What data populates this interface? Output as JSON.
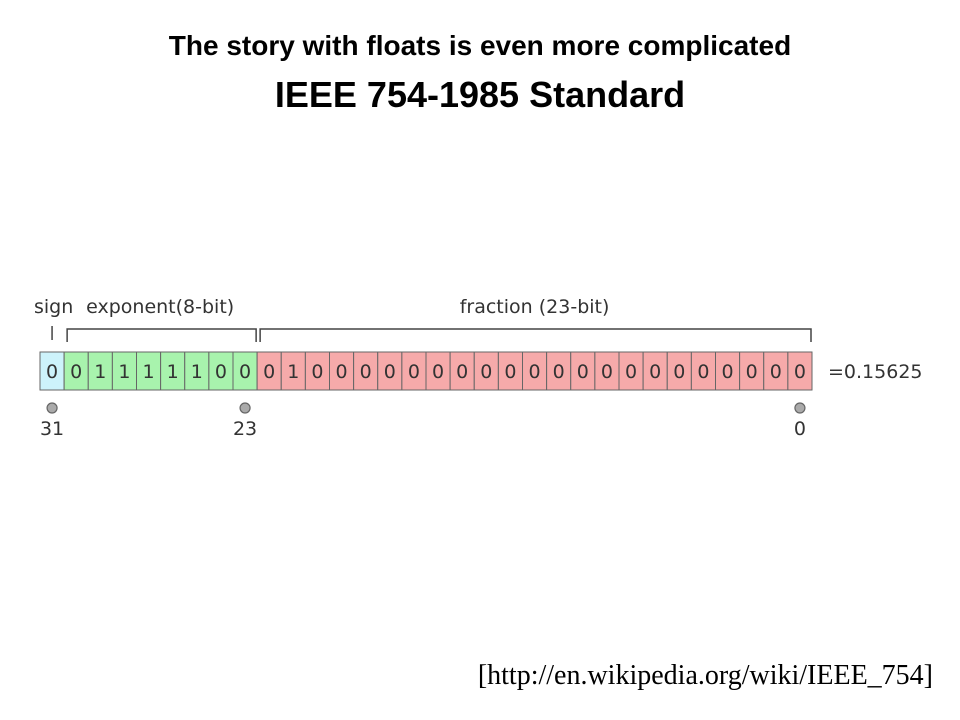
{
  "slide": {
    "title": "The story with floats is even more complicated",
    "subtitle": "IEEE 754-1985 Standard",
    "groups": [
      {
        "label": "sign",
        "bits": [
          0
        ]
      },
      {
        "label": "exponent(8-bit)",
        "bits": [
          0,
          1,
          1,
          1,
          1,
          1,
          0,
          0
        ]
      },
      {
        "label": "fraction (23-bit)",
        "bits": [
          0,
          1,
          0,
          0,
          0,
          0,
          0,
          0,
          0,
          0,
          0,
          0,
          0,
          0,
          0,
          0,
          0,
          0,
          0,
          0,
          0,
          0,
          0
        ]
      }
    ],
    "result": "=0.15625",
    "bit_markers": [
      31,
      23,
      0
    ],
    "citation": "[http://en.wikipedia.org/wiki/IEEE_754]"
  }
}
